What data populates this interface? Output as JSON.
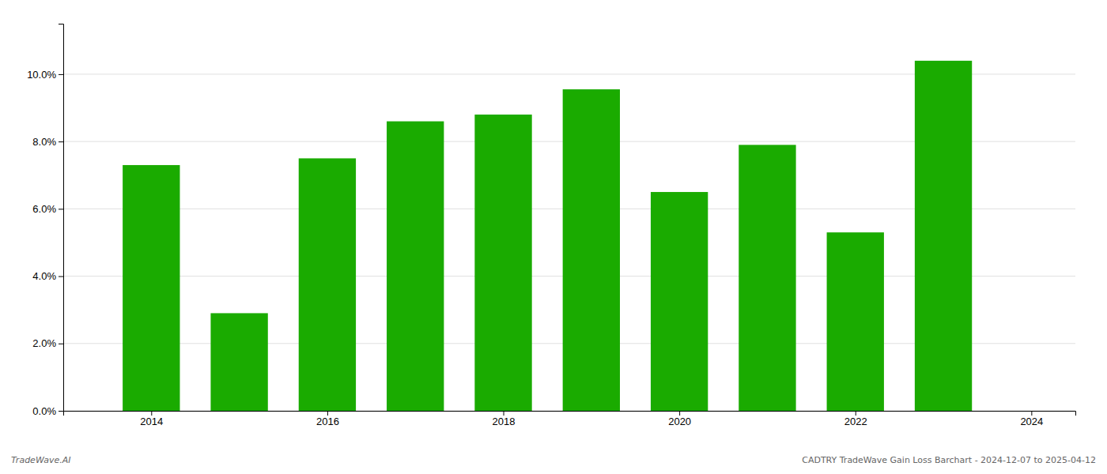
{
  "chart_data": {
    "type": "bar",
    "x": [
      2014,
      2015,
      2016,
      2017,
      2018,
      2019,
      2020,
      2021,
      2022,
      2023
    ],
    "values": [
      0.073,
      0.029,
      0.075,
      0.086,
      0.088,
      0.0955,
      0.065,
      0.079,
      0.053,
      0.104
    ],
    "color": "#1aab00",
    "xlim": [
      2013.0,
      2024.5
    ],
    "xticks": [
      2014,
      2016,
      2018,
      2020,
      2022,
      2024
    ],
    "ylim": [
      0,
      0.115
    ],
    "yticks": [
      {
        "value": 0.0,
        "label": "0.0%"
      },
      {
        "value": 0.02,
        "label": "2.0%"
      },
      {
        "value": 0.04,
        "label": "4.0%"
      },
      {
        "value": 0.06,
        "label": "6.0%"
      },
      {
        "value": 0.08,
        "label": "8.0%"
      },
      {
        "value": 0.1,
        "label": "10.0%"
      }
    ],
    "grid": true,
    "annotations": [
      "TradeWave.AI",
      "CADTRY TradeWave Gain Loss Barchart - 2024-12-07 to 2025-04-12"
    ]
  }
}
